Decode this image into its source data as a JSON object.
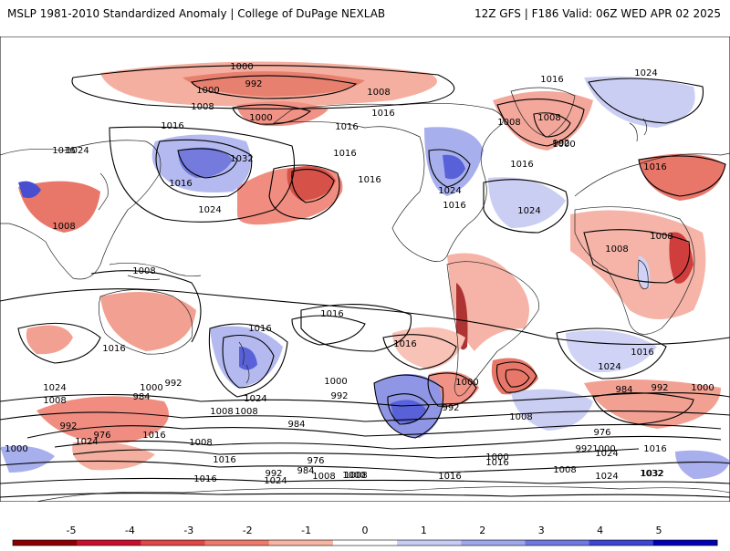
{
  "header": {
    "title": "MSLP 1981-2010 Standardized Anomaly | College of DuPage NEXLAB",
    "run_info": "12Z GFS | F186 Valid: 06Z WED APR 02 2025"
  },
  "colorbar": {
    "ticks": [
      "-5",
      "-4",
      "-3",
      "-2",
      "-1",
      "0",
      "1",
      "2",
      "3",
      "4",
      "5"
    ],
    "colors": [
      "#8b0000",
      "#c8102e",
      "#e04848",
      "#ee7a6a",
      "#f8b4a4",
      "#ffffff",
      "#c8ccf4",
      "#9ea6ec",
      "#6e78e0",
      "#3c46d2",
      "#0000b4"
    ]
  },
  "colors": {
    "negative_anomaly": "#e8705e",
    "strong_negative": "#b81c1c",
    "positive_anomaly": "#9aa2ea",
    "strong_positive": "#2830c8",
    "contour": "#000000",
    "land": "#ffffff"
  },
  "isobar_labels": [
    "1000",
    "992",
    "1000",
    "1008",
    "1008",
    "1000",
    "1016",
    "1016",
    "1016",
    "1032",
    "1016",
    "1024",
    "1024",
    "1016",
    "1008",
    "1016",
    "1024",
    "1016",
    "1024",
    "1016",
    "1016",
    "1008",
    "1008",
    "1000",
    "992",
    "1024",
    "1016",
    "1016",
    "1008",
    "1008",
    "1008",
    "1016",
    "1016",
    "1016",
    "1016",
    "1016",
    "1024",
    "1024",
    "1008",
    "1000",
    "992",
    "984",
    "1024",
    "1008",
    "1000",
    "992",
    "984",
    "1008",
    "1000",
    "992",
    "1008",
    "1016",
    "976",
    "992",
    "1024",
    "1000",
    "1008",
    "1016",
    "1016",
    "1024",
    "1032",
    "984",
    "992",
    "1000",
    "976",
    "992",
    "1000",
    "1016",
    "1008",
    "1000",
    "1016",
    "1008",
    "1024",
    "1032",
    "992",
    "984",
    "976",
    "1000",
    "1008",
    "1016",
    "1024"
  ]
}
